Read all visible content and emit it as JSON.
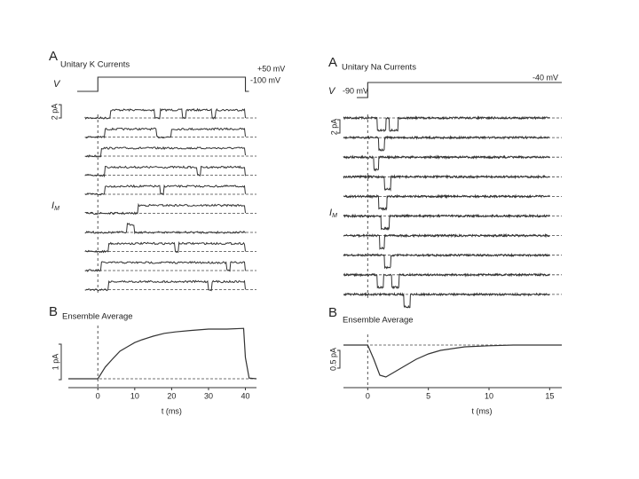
{
  "figure": {
    "unitary_panels": [
      {
        "panel_label": "A",
        "title": "Unitary K Currents",
        "v_label": "V",
        "v_step_label": "+50 mV",
        "v_hold_label": "-100 mV",
        "scale_bar_label": "2 pA",
        "i_label": "I",
        "i_sub": "M",
        "direction": "up",
        "openings": [
          [
            [
              3.5,
              15.5
            ],
            [
              17,
              23
            ],
            [
              24,
              31
            ],
            [
              32,
              40
            ]
          ],
          [
            [
              2,
              16
            ],
            [
              20,
              40
            ]
          ],
          [
            [
              1,
              40
            ]
          ],
          [
            [
              2,
              27
            ],
            [
              28,
              40
            ]
          ],
          [
            [
              2,
              17
            ],
            [
              18,
              40
            ]
          ],
          [
            [
              11,
              40
            ]
          ],
          [
            [
              8,
              10
            ]
          ],
          [
            [
              3,
              21
            ],
            [
              22,
              40
            ]
          ],
          [
            [
              1,
              35
            ],
            [
              36,
              40
            ]
          ],
          [
            [
              3,
              30
            ],
            [
              31,
              40
            ]
          ]
        ]
      },
      {
        "panel_label": "A",
        "title": "Unitary Na Currents",
        "v_label": "V",
        "v_step_label": "-40 mV",
        "v_hold_label": "-90 mV",
        "scale_bar_label": "2 pA",
        "i_label": "I",
        "i_sub": "M",
        "direction": "down",
        "openings": [
          [
            [
              0.8,
              1.5
            ],
            [
              1.8,
              2.5
            ]
          ],
          [
            [
              0.9,
              1.4
            ]
          ],
          [
            [
              0.5,
              0.9
            ]
          ],
          [
            [
              1.4,
              1.9
            ]
          ],
          [
            [
              0.9,
              1.6
            ]
          ],
          [
            [
              1.1,
              1.8
            ]
          ],
          [
            [
              1.0,
              1.4
            ]
          ],
          [
            [
              1.4,
              1.9
            ]
          ],
          [
            [
              0.8,
              1.3
            ],
            [
              2.0,
              2.6
            ]
          ],
          [
            [
              3.0,
              3.5
            ]
          ]
        ]
      }
    ]
  },
  "chart_data": [
    {
      "type": "line",
      "panel_label": "B",
      "title": "Ensemble Average",
      "x_label": "t (ms)",
      "scale_bar_label": "1 pA",
      "x": [
        -8,
        -4,
        0,
        2,
        4,
        6,
        8,
        10,
        12,
        15,
        18,
        21,
        25,
        30,
        35,
        39.5,
        40,
        41,
        43
      ],
      "values": [
        0,
        0,
        0,
        0.33,
        0.56,
        0.78,
        0.9,
        1.02,
        1.1,
        1.2,
        1.28,
        1.32,
        1.36,
        1.4,
        1.4,
        1.42,
        0.6,
        0.02,
        0
      ],
      "xlim": [
        -8,
        43
      ],
      "ylim": [
        -0.25,
        1.5
      ],
      "xticks": [
        0,
        10,
        20,
        30,
        40
      ],
      "color": "#333333"
    },
    {
      "type": "line",
      "panel_label": "B",
      "title": "Ensemble Average",
      "x_label": "t (ms)",
      "scale_bar_label": "0.5 pA",
      "x": [
        -2,
        0,
        0.5,
        1,
        1.5,
        2,
        3,
        4,
        5,
        6,
        8,
        10,
        12,
        15,
        16
      ],
      "values": [
        0,
        0,
        -0.4,
        -0.85,
        -0.9,
        -0.8,
        -0.6,
        -0.4,
        -0.25,
        -0.15,
        -0.05,
        -0.02,
        0,
        0,
        0
      ],
      "xlim": [
        -2,
        16
      ],
      "ylim": [
        -1.2,
        0.3
      ],
      "xticks": [
        0,
        5,
        10,
        15
      ],
      "color": "#333333"
    }
  ]
}
